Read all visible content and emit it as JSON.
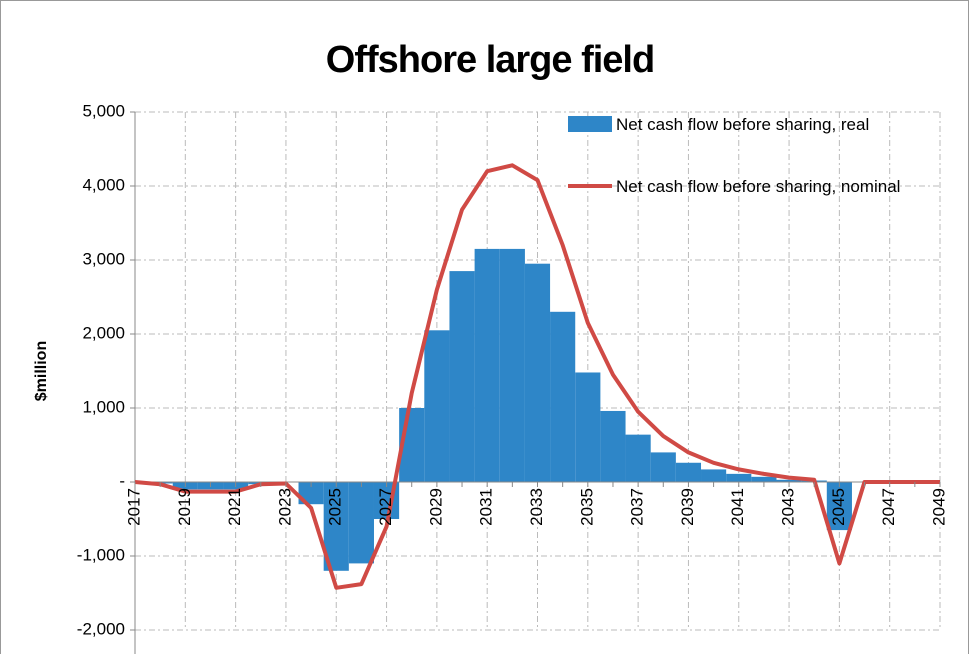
{
  "chart_data": {
    "type": "bar-line",
    "title": "Offshore large field",
    "y_label": "$million",
    "categories": [
      "2017",
      null,
      "2019",
      null,
      "2021",
      null,
      "2023",
      null,
      "2025",
      null,
      "2027",
      null,
      "2029",
      null,
      "2031",
      null,
      "2033",
      null,
      "2035",
      null,
      "2037",
      null,
      "2039",
      null,
      "2041",
      null,
      "2043",
      null,
      "2045",
      null,
      "2047",
      null,
      "2049"
    ],
    "series": [
      {
        "name": "Net cash flow before sharing, real",
        "type": "bar",
        "color": "#2e86c8",
        "values": [
          0,
          -20,
          -100,
          -100,
          -100,
          -30,
          0,
          -300,
          -1200,
          -1100,
          -500,
          1000,
          2050,
          2850,
          3150,
          3150,
          2950,
          2300,
          1480,
          960,
          640,
          400,
          260,
          170,
          110,
          70,
          30,
          20,
          -650,
          0,
          0,
          0,
          0
        ]
      },
      {
        "name": "Net cash flow before sharing, nominal",
        "type": "line",
        "color": "#d04a45",
        "values": [
          0,
          -30,
          -130,
          -130,
          -130,
          -30,
          -20,
          -350,
          -1430,
          -1380,
          -600,
          1200,
          2600,
          3680,
          4200,
          4280,
          4080,
          3200,
          2150,
          1450,
          950,
          620,
          400,
          260,
          170,
          110,
          60,
          30,
          -1100,
          0,
          0,
          0,
          0
        ]
      }
    ],
    "ylim": [
      -2000,
      5000
    ],
    "yticks": [
      {
        "value": -2000,
        "label": "-2,000"
      },
      {
        "value": -1000,
        "label": "-1,000"
      },
      {
        "value": 0,
        "label": "-"
      },
      {
        "value": 1000,
        "label": "1,000"
      },
      {
        "value": 2000,
        "label": "2,000"
      },
      {
        "value": 3000,
        "label": "3,000"
      },
      {
        "value": 4000,
        "label": "4,000"
      },
      {
        "value": 5000,
        "label": "5,000"
      }
    ],
    "grid": true,
    "legend": "top-right"
  }
}
